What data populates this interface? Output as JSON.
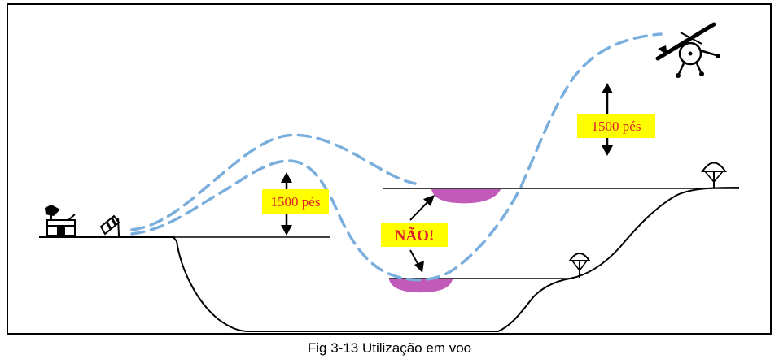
{
  "labels": {
    "altitude_left": "1500 pés",
    "altitude_right": "1500 pés",
    "warning": "NÃO!"
  },
  "caption": "Fig 3-13 Utilização em voo",
  "colors": {
    "flight_path": "#7aaedc",
    "label_bg": "#ffff00",
    "label_text": "#e0202a",
    "zone": "#c25ab9",
    "line": "#000000"
  },
  "icons": [
    "building-icon",
    "windsock-icon",
    "tree-icon",
    "aircraft-icon",
    "double-arrow-icon",
    "arrow-icon"
  ]
}
